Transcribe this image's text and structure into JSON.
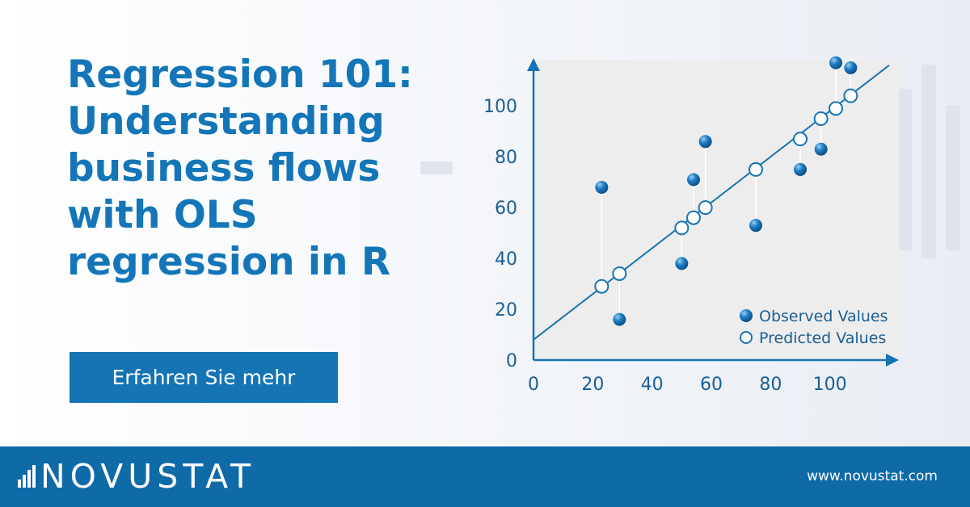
{
  "headline": {
    "lines": [
      "Regression 101:",
      "Understanding",
      "business flows",
      "with OLS",
      "regression in R"
    ]
  },
  "cta": {
    "label": "Erfahren Sie mehr"
  },
  "footer": {
    "brand": "NOVUSTAT",
    "url": "www.novustat.com"
  },
  "colors": {
    "brand_blue": "#1476b8",
    "footer_blue": "#0f6aa8",
    "point_blue": "#1f7fc4",
    "plot_bg": "#eeeded"
  },
  "chart_data": {
    "type": "scatter",
    "title": "",
    "xlabel": "",
    "ylabel": "",
    "xlim": [
      0,
      120
    ],
    "ylim": [
      0,
      115
    ],
    "x_ticks": [
      0,
      20,
      40,
      60,
      80,
      100
    ],
    "y_ticks": [
      0,
      20,
      40,
      60,
      80,
      100
    ],
    "grid": false,
    "legend_position": "bottom-right",
    "regression_line": {
      "intercept": 8,
      "slope": 0.9
    },
    "series": [
      {
        "name": "Observed Values",
        "marker": "filled",
        "points": [
          {
            "x": 23,
            "y": 68
          },
          {
            "x": 29,
            "y": 16
          },
          {
            "x": 50,
            "y": 38
          },
          {
            "x": 54,
            "y": 71
          },
          {
            "x": 58,
            "y": 86
          },
          {
            "x": 75,
            "y": 53
          },
          {
            "x": 90,
            "y": 75
          },
          {
            "x": 97,
            "y": 83
          },
          {
            "x": 102,
            "y": 117
          },
          {
            "x": 107,
            "y": 115
          }
        ]
      },
      {
        "name": "Predicted Values",
        "marker": "hollow",
        "points": [
          {
            "x": 23,
            "y": 29
          },
          {
            "x": 29,
            "y": 34
          },
          {
            "x": 50,
            "y": 52
          },
          {
            "x": 54,
            "y": 56
          },
          {
            "x": 58,
            "y": 60
          },
          {
            "x": 75,
            "y": 75
          },
          {
            "x": 90,
            "y": 87
          },
          {
            "x": 97,
            "y": 95
          },
          {
            "x": 102,
            "y": 99
          },
          {
            "x": 107,
            "y": 104
          }
        ]
      }
    ]
  }
}
